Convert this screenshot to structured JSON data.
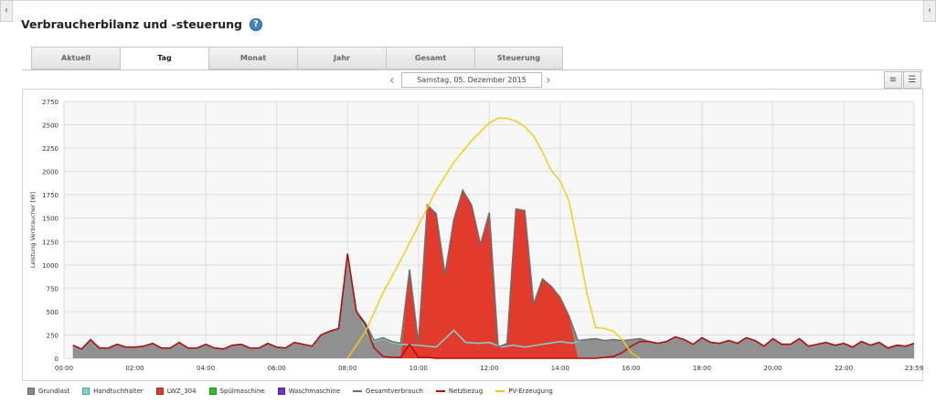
{
  "page": {
    "title": "Verbraucherbilanz und -steuerung",
    "help_icon": "?",
    "left_arrow": "‹",
    "right_arrow": "‹"
  },
  "tabs": [
    {
      "label": "Aktuell",
      "active": false
    },
    {
      "label": "Tag",
      "active": true
    },
    {
      "label": "Monat",
      "active": false
    },
    {
      "label": "Jahr",
      "active": false
    },
    {
      "label": "Gesamt",
      "active": false
    },
    {
      "label": "Steuerung",
      "active": false
    }
  ],
  "date_nav": {
    "prev": "‹",
    "date": "Samstag, 05. Dezember 2015",
    "next": "›"
  },
  "view_buttons": {
    "stack_icon": "≡",
    "list_icon": "☰"
  },
  "colors": {
    "grundlast": "#8a8a8a",
    "handtuchhalter": "#7fd3d3",
    "lwz": "#e23b2e",
    "spuelmaschine": "#2cc22c",
    "waschmaschine": "#7b2fc8",
    "gesamtverbrauch": "#6e6e6e",
    "netzbezug": "#b30c0c",
    "pv": "#f2cd1b"
  },
  "chart_data": {
    "type": "area",
    "ylabel": "Leistung Verbraucher [W]",
    "xlabel": "",
    "ylim": [
      0,
      2750
    ],
    "yticks": [
      "0",
      "250",
      "500",
      "750",
      "1000",
      "1250",
      "1500",
      "1750",
      "2000",
      "2250",
      "2500",
      "2750"
    ],
    "xlim_minutes": [
      0,
      1439
    ],
    "xticks": [
      {
        "label": "00:00",
        "minute": 0
      },
      {
        "label": "02:00",
        "minute": 120
      },
      {
        "label": "04:00",
        "minute": 240
      },
      {
        "label": "06:00",
        "minute": 360
      },
      {
        "label": "08:00",
        "minute": 480
      },
      {
        "label": "10:00",
        "minute": 600
      },
      {
        "label": "12:00",
        "minute": 720
      },
      {
        "label": "14:00",
        "minute": 840
      },
      {
        "label": "16:00",
        "minute": 960
      },
      {
        "label": "18:00",
        "minute": 1080
      },
      {
        "label": "20:00",
        "minute": 1200
      },
      {
        "label": "22:00",
        "minute": 1320
      },
      {
        "label": "23:59",
        "minute": 1439
      }
    ],
    "grid": true,
    "legend_position": "bottom",
    "legend": [
      {
        "name": "Grundlast",
        "kind": "area",
        "color": "#8a8a8a"
      },
      {
        "name": "Handtuchhalter",
        "kind": "area",
        "color": "#7fd3d3"
      },
      {
        "name": "LWZ_304",
        "kind": "area",
        "color": "#e23b2e"
      },
      {
        "name": "Spülmaschine",
        "kind": "area",
        "color": "#2cc22c"
      },
      {
        "name": "Waschmaschine",
        "kind": "area",
        "color": "#7b2fc8"
      },
      {
        "name": "Gesamtverbrauch",
        "kind": "line",
        "color": "#6e6e6e"
      },
      {
        "name": "Netzbezug",
        "kind": "line",
        "color": "#b30c0c"
      },
      {
        "name": "PV-Erzeugung",
        "kind": "line",
        "color": "#f2cd1b"
      }
    ],
    "series": [
      {
        "name": "Gesamtverbrauch",
        "points": [
          [
            15,
            140
          ],
          [
            30,
            100
          ],
          [
            45,
            200
          ],
          [
            60,
            110
          ],
          [
            75,
            110
          ],
          [
            90,
            150
          ],
          [
            105,
            120
          ],
          [
            120,
            120
          ],
          [
            135,
            130
          ],
          [
            150,
            160
          ],
          [
            165,
            110
          ],
          [
            180,
            110
          ],
          [
            195,
            170
          ],
          [
            210,
            110
          ],
          [
            225,
            110
          ],
          [
            240,
            150
          ],
          [
            255,
            110
          ],
          [
            270,
            100
          ],
          [
            285,
            140
          ],
          [
            300,
            150
          ],
          [
            315,
            110
          ],
          [
            330,
            110
          ],
          [
            345,
            160
          ],
          [
            360,
            120
          ],
          [
            375,
            110
          ],
          [
            390,
            170
          ],
          [
            405,
            150
          ],
          [
            420,
            130
          ],
          [
            435,
            250
          ],
          [
            450,
            290
          ],
          [
            465,
            320
          ],
          [
            480,
            1120
          ],
          [
            495,
            500
          ],
          [
            510,
            380
          ],
          [
            525,
            190
          ],
          [
            540,
            220
          ],
          [
            555,
            180
          ],
          [
            570,
            160
          ],
          [
            585,
            950
          ],
          [
            600,
            160
          ],
          [
            615,
            1640
          ],
          [
            630,
            1550
          ],
          [
            645,
            900
          ],
          [
            660,
            1490
          ],
          [
            675,
            1800
          ],
          [
            690,
            1640
          ],
          [
            705,
            1220
          ],
          [
            720,
            1560
          ],
          [
            735,
            120
          ],
          [
            750,
            160
          ],
          [
            765,
            1600
          ],
          [
            780,
            1580
          ],
          [
            795,
            580
          ],
          [
            810,
            850
          ],
          [
            825,
            770
          ],
          [
            840,
            650
          ],
          [
            855,
            450
          ],
          [
            870,
            190
          ],
          [
            885,
            200
          ],
          [
            900,
            210
          ],
          [
            915,
            190
          ],
          [
            930,
            200
          ],
          [
            945,
            190
          ],
          [
            960,
            200
          ],
          [
            975,
            210
          ],
          [
            990,
            180
          ],
          [
            1005,
            160
          ],
          [
            1020,
            180
          ],
          [
            1035,
            230
          ],
          [
            1050,
            200
          ],
          [
            1065,
            150
          ],
          [
            1080,
            220
          ],
          [
            1095,
            170
          ],
          [
            1110,
            160
          ],
          [
            1125,
            190
          ],
          [
            1140,
            160
          ],
          [
            1155,
            220
          ],
          [
            1170,
            190
          ],
          [
            1185,
            130
          ],
          [
            1200,
            210
          ],
          [
            1215,
            150
          ],
          [
            1230,
            150
          ],
          [
            1245,
            210
          ],
          [
            1260,
            130
          ],
          [
            1275,
            150
          ],
          [
            1290,
            170
          ],
          [
            1305,
            140
          ],
          [
            1320,
            160
          ],
          [
            1335,
            120
          ],
          [
            1350,
            180
          ],
          [
            1365,
            140
          ],
          [
            1380,
            170
          ],
          [
            1395,
            110
          ],
          [
            1410,
            140
          ],
          [
            1425,
            130
          ],
          [
            1439,
            160
          ]
        ]
      },
      {
        "name": "LWZ_304",
        "points": [
          [
            570,
            0
          ],
          [
            585,
            950
          ],
          [
            600,
            160
          ],
          [
            615,
            1640
          ],
          [
            630,
            1550
          ],
          [
            645,
            900
          ],
          [
            660,
            1490
          ],
          [
            675,
            1800
          ],
          [
            690,
            1640
          ],
          [
            705,
            1220
          ],
          [
            720,
            1560
          ],
          [
            735,
            120
          ],
          [
            750,
            160
          ],
          [
            765,
            1600
          ],
          [
            780,
            1580
          ],
          [
            795,
            580
          ],
          [
            810,
            850
          ],
          [
            825,
            770
          ],
          [
            840,
            650
          ],
          [
            855,
            450
          ],
          [
            870,
            0
          ]
        ]
      },
      {
        "name": "Handtuchhalter",
        "points": [
          [
            495,
            520
          ],
          [
            505,
            400
          ],
          [
            515,
            250
          ],
          [
            525,
            180
          ],
          [
            540,
            210
          ],
          [
            555,
            170
          ],
          [
            570,
            150
          ],
          [
            600,
            140
          ],
          [
            630,
            120
          ],
          [
            660,
            300
          ],
          [
            680,
            170
          ],
          [
            700,
            160
          ],
          [
            720,
            170
          ],
          [
            740,
            120
          ],
          [
            760,
            140
          ],
          [
            780,
            120
          ],
          [
            800,
            140
          ],
          [
            820,
            160
          ],
          [
            840,
            180
          ],
          [
            860,
            160
          ],
          [
            880,
            200
          ],
          [
            900,
            210
          ]
        ]
      },
      {
        "name": "Netzbezug",
        "points": [
          [
            15,
            140
          ],
          [
            30,
            100
          ],
          [
            45,
            200
          ],
          [
            60,
            110
          ],
          [
            75,
            110
          ],
          [
            90,
            150
          ],
          [
            105,
            120
          ],
          [
            120,
            120
          ],
          [
            135,
            130
          ],
          [
            150,
            160
          ],
          [
            165,
            110
          ],
          [
            180,
            110
          ],
          [
            195,
            170
          ],
          [
            210,
            110
          ],
          [
            225,
            110
          ],
          [
            240,
            150
          ],
          [
            255,
            110
          ],
          [
            270,
            100
          ],
          [
            285,
            140
          ],
          [
            300,
            150
          ],
          [
            315,
            110
          ],
          [
            330,
            110
          ],
          [
            345,
            160
          ],
          [
            360,
            120
          ],
          [
            375,
            110
          ],
          [
            390,
            170
          ],
          [
            405,
            150
          ],
          [
            420,
            130
          ],
          [
            435,
            250
          ],
          [
            450,
            290
          ],
          [
            465,
            320
          ],
          [
            480,
            1120
          ],
          [
            495,
            500
          ],
          [
            510,
            360
          ],
          [
            525,
            110
          ],
          [
            540,
            20
          ],
          [
            555,
            10
          ],
          [
            570,
            10
          ],
          [
            585,
            150
          ],
          [
            600,
            10
          ],
          [
            615,
            10
          ],
          [
            630,
            0
          ],
          [
            900,
            0
          ],
          [
            915,
            10
          ],
          [
            930,
            20
          ],
          [
            945,
            60
          ],
          [
            960,
            130
          ],
          [
            975,
            180
          ],
          [
            990,
            180
          ],
          [
            1005,
            160
          ],
          [
            1020,
            180
          ],
          [
            1035,
            230
          ],
          [
            1050,
            200
          ],
          [
            1065,
            150
          ],
          [
            1080,
            220
          ],
          [
            1095,
            170
          ],
          [
            1110,
            160
          ],
          [
            1125,
            190
          ],
          [
            1140,
            160
          ],
          [
            1155,
            220
          ],
          [
            1170,
            190
          ],
          [
            1185,
            130
          ],
          [
            1200,
            210
          ],
          [
            1215,
            150
          ],
          [
            1230,
            150
          ],
          [
            1245,
            210
          ],
          [
            1260,
            130
          ],
          [
            1275,
            150
          ],
          [
            1290,
            170
          ],
          [
            1305,
            140
          ],
          [
            1320,
            160
          ],
          [
            1335,
            120
          ],
          [
            1350,
            180
          ],
          [
            1365,
            140
          ],
          [
            1380,
            170
          ],
          [
            1395,
            110
          ],
          [
            1410,
            140
          ],
          [
            1425,
            130
          ],
          [
            1439,
            160
          ]
        ]
      },
      {
        "name": "PV-Erzeugung",
        "points": [
          [
            480,
            0
          ],
          [
            510,
            280
          ],
          [
            540,
            700
          ],
          [
            570,
            1050
          ],
          [
            600,
            1420
          ],
          [
            630,
            1800
          ],
          [
            660,
            2100
          ],
          [
            690,
            2330
          ],
          [
            720,
            2520
          ],
          [
            735,
            2570
          ],
          [
            750,
            2570
          ],
          [
            765,
            2540
          ],
          [
            780,
            2480
          ],
          [
            795,
            2380
          ],
          [
            810,
            2210
          ],
          [
            825,
            2010
          ],
          [
            840,
            1900
          ],
          [
            855,
            1680
          ],
          [
            870,
            1210
          ],
          [
            885,
            700
          ],
          [
            900,
            330
          ],
          [
            915,
            320
          ],
          [
            930,
            290
          ],
          [
            945,
            200
          ],
          [
            960,
            60
          ],
          [
            975,
            0
          ]
        ]
      }
    ]
  }
}
